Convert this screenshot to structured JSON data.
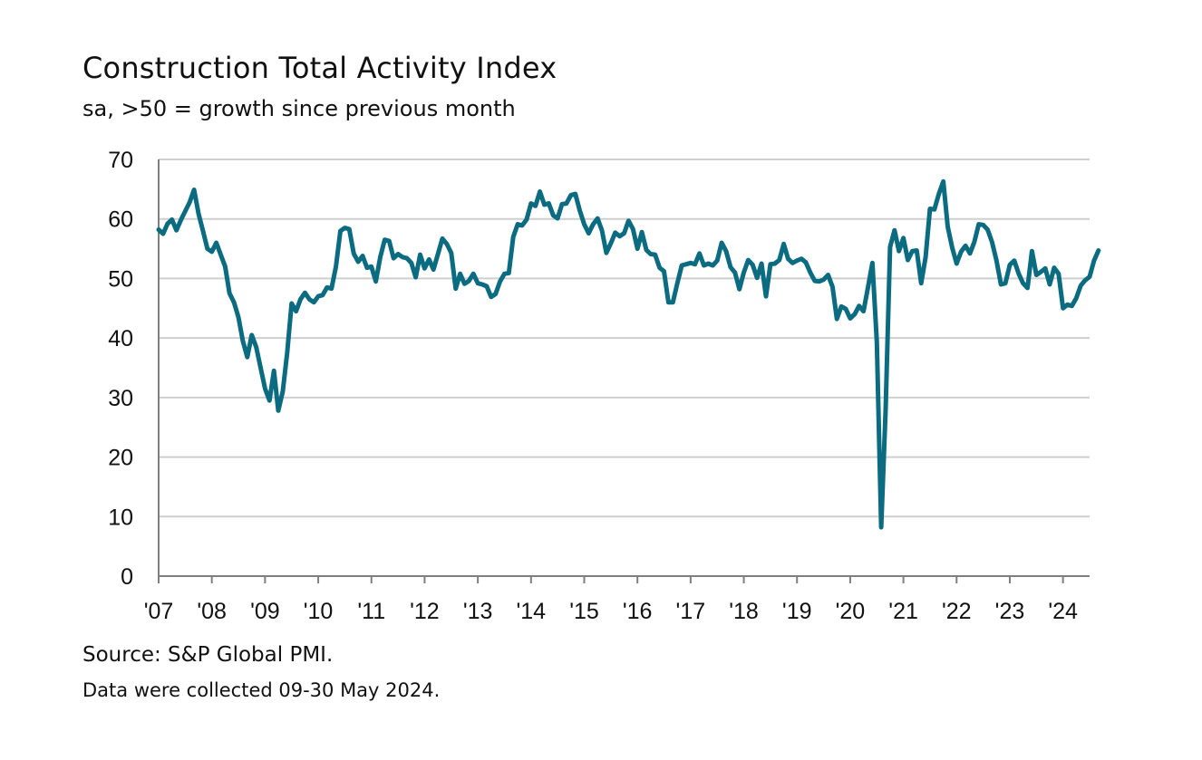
{
  "title": "Construction Total Activity Index",
  "subtitle": "sa, >50 = growth since previous month",
  "source": "Source: S&P Global PMI.",
  "note": "Data were collected 09-30 May 2024.",
  "colors": {
    "line": "#0b6b80",
    "grid": "#cfcfcf",
    "axis": "#7f7f7f"
  },
  "chart_data": {
    "type": "line",
    "title": "Construction Total Activity Index",
    "subtitle": "sa, >50 = growth since previous month",
    "xlabel": "",
    "ylabel": "",
    "ylim": [
      0,
      70
    ],
    "yticks": [
      0,
      10,
      20,
      30,
      40,
      50,
      60,
      70
    ],
    "xlim": [
      2007.0,
      2024.5
    ],
    "xticks": [
      "'07",
      "'08",
      "'09",
      "'10",
      "'11",
      "'12",
      "'13",
      "'14",
      "'15",
      "'16",
      "'17",
      "'18",
      "'19",
      "'20",
      "'21",
      "'22",
      "'23",
      "'24"
    ],
    "grid": true,
    "legend": "none",
    "series": [
      {
        "start": "2007-01",
        "frequency": "monthly",
        "values": [
          58.2,
          57.5,
          59.2,
          59.9,
          58.1,
          59.8,
          61.3,
          62.8,
          64.9,
          60.9,
          58.0,
          55.0,
          54.5,
          56.0,
          54.0,
          52.0,
          47.5,
          46.0,
          43.5,
          39.5,
          36.8,
          40.5,
          38.5,
          35.0,
          31.5,
          29.5,
          34.5,
          27.8,
          31.0,
          37.5,
          45.8,
          44.5,
          46.5,
          47.6,
          46.5,
          46.0,
          47.0,
          47.2,
          48.5,
          48.3,
          52.0,
          58.0,
          58.5,
          58.3,
          54.2,
          52.8,
          53.8,
          51.8,
          52.0,
          49.5,
          53.6,
          56.5,
          56.3,
          53.4,
          54.1,
          53.6,
          53.4,
          52.6,
          50.2,
          54.0,
          51.7,
          53.2,
          51.5,
          54.1,
          56.7,
          55.8,
          54.3,
          48.3,
          50.8,
          49.1,
          49.6,
          50.8,
          49.2,
          49.0,
          48.7,
          46.9,
          47.4,
          49.5,
          50.8,
          50.9,
          57.0,
          59.1,
          58.9,
          59.9,
          62.6,
          62.2,
          64.6,
          62.4,
          62.6,
          60.6,
          60.1,
          62.5,
          62.6,
          64.0,
          64.2,
          61.4,
          59.1,
          57.6,
          59.1,
          60.1,
          58.1,
          54.3,
          55.9,
          57.7,
          57.1,
          57.6,
          59.7,
          58.3,
          55.0,
          57.8,
          54.8,
          54.1,
          54.0,
          51.8,
          51.2,
          46.0,
          46.0,
          49.2,
          52.2,
          52.4,
          52.6,
          52.4,
          54.2,
          52.2,
          52.5,
          52.2,
          53.0,
          56.0,
          54.6,
          51.9,
          51.0,
          48.2,
          51.0,
          53.1,
          52.3,
          50.1,
          52.5,
          47.0,
          52.4,
          52.5,
          53.1,
          55.8,
          53.3,
          52.6,
          53.0,
          53.3,
          52.7,
          51.0,
          49.6,
          49.5,
          49.8,
          50.6,
          48.6,
          43.2,
          45.3,
          44.9,
          43.3,
          44.0,
          45.4,
          44.5,
          48.5,
          52.6,
          39.3,
          8.2,
          28.0,
          55.3,
          58.1,
          54.6,
          56.8,
          53.1,
          54.6,
          54.7,
          49.2,
          53.6,
          61.7,
          61.6,
          64.2,
          66.3,
          58.7,
          55.2,
          52.5,
          54.5,
          55.5,
          54.2,
          56.1,
          59.1,
          59.0,
          58.2,
          56.1,
          53.0,
          49.0,
          49.2,
          52.3,
          53.0,
          50.8,
          49.2,
          48.4,
          54.6,
          50.6,
          51.1,
          51.7,
          49.0,
          51.8,
          50.8,
          45.0,
          45.6,
          45.4,
          46.7,
          48.8,
          49.7,
          50.3,
          53.0,
          54.7
        ]
      }
    ]
  }
}
